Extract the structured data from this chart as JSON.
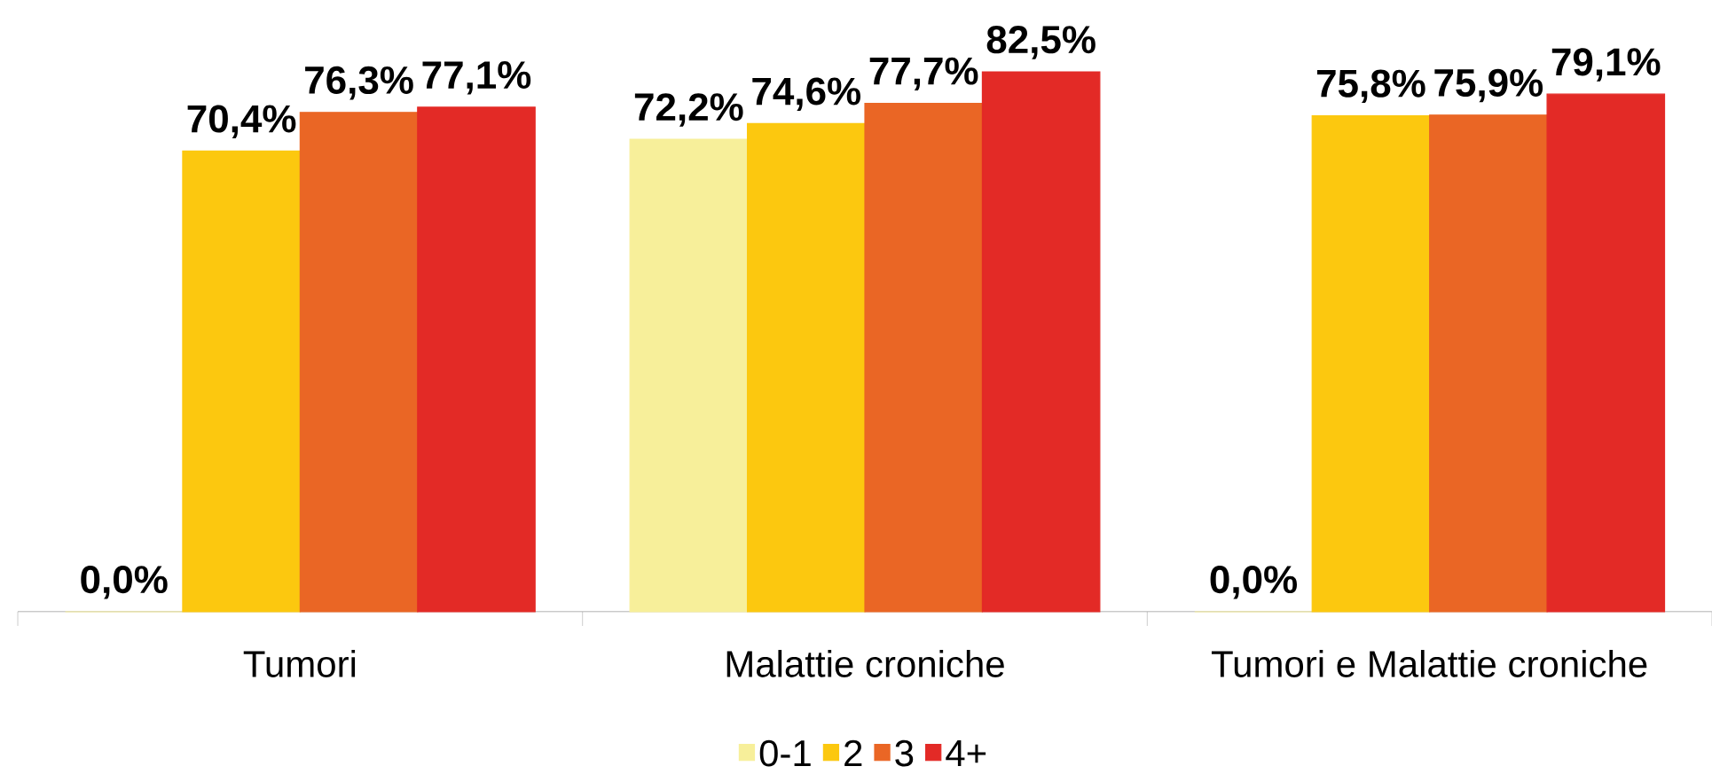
{
  "chart_data": {
    "type": "bar",
    "categories": [
      "Tumori",
      "Malattie croniche",
      "Tumori e Malattie croniche"
    ],
    "legend": "bottom",
    "series": [
      {
        "name": "0-1",
        "color": "#f7ef9a",
        "values": [
          0,
          72.2,
          0
        ],
        "value_labels": [
          "0,0%",
          "72,2%",
          "0,0%"
        ]
      },
      {
        "name": "2",
        "color": "#fcc80f",
        "values": [
          70.4,
          74.6,
          75.8
        ],
        "value_labels": [
          "70,4%",
          "74,6%",
          "75,8%"
        ]
      },
      {
        "name": "3",
        "color": "#ea6625",
        "values": [
          76.3,
          77.7,
          75.9
        ],
        "value_labels": [
          "76,3%",
          "77,7%",
          "75,9%"
        ]
      },
      {
        "name": "4+",
        "color": "#e32a26",
        "values": [
          77.1,
          82.5,
          79.1
        ],
        "value_labels": [
          "77,1%",
          "82,5%",
          "79,1%"
        ]
      }
    ]
  }
}
